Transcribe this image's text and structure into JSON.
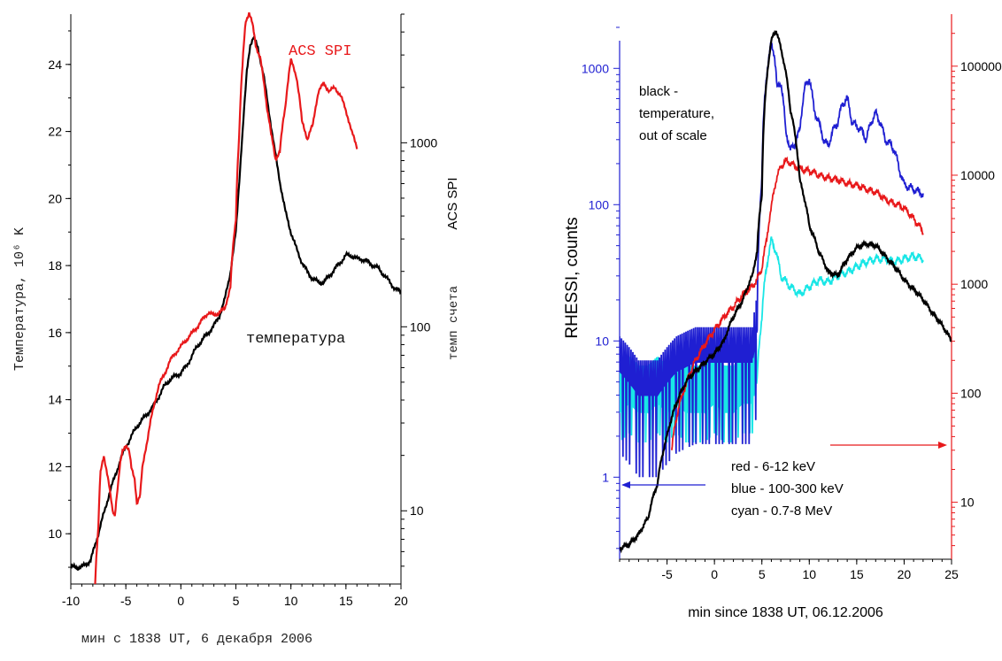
{
  "chart_data": [
    {
      "type": "line",
      "series_label": "ACS SPI",
      "curve_label": "температура",
      "ylabel": "Температура, 10⁶ K",
      "y2label_a": "темп счета",
      "y2label_b": "ACS SPI",
      "xlim": [
        -10,
        20
      ],
      "ylim": [
        8.5,
        25.5
      ],
      "y2lim_log": [
        4,
        5000
      ],
      "x_ticks": [
        -10,
        -5,
        0,
        5,
        10,
        15,
        20
      ],
      "x_tick_labels": [
        "-10",
        "-5",
        "0",
        "5",
        "10",
        "15",
        "20"
      ],
      "y_ticks": [
        10,
        12,
        14,
        16,
        18,
        20,
        22,
        24
      ],
      "y_tick_labels": [
        "10",
        "12",
        "14",
        "16",
        "18",
        "20",
        "22",
        "24"
      ],
      "y2_ticks": [
        10,
        100,
        1000
      ],
      "y2_tick_labels": [
        "10",
        "100",
        "1000"
      ],
      "colors": {
        "acs": "#e8191b",
        "temperature": "#000000"
      },
      "series": [
        {
          "name": "температура",
          "axis": "left",
          "x": [
            -10,
            -9,
            -8.2,
            -7.5,
            -7,
            -6.5,
            -6,
            -5.5,
            -5,
            -4.5,
            -4,
            -3.5,
            -3,
            -2.5,
            -2,
            -1.5,
            -1,
            -0.5,
            0,
            0.5,
            1,
            1.5,
            2,
            2.5,
            3,
            3.5,
            4,
            4.5,
            5,
            5.5,
            6,
            6.3,
            6.6,
            7,
            7.5,
            8,
            8.5,
            9,
            9.5,
            10,
            10.5,
            11,
            11.5,
            12,
            12.5,
            13,
            13.5,
            14,
            14.5,
            15,
            15.5,
            16,
            16.5,
            17,
            17.5,
            18,
            18.5,
            19,
            19.5,
            20
          ],
          "y": [
            9.0,
            9.0,
            9.2,
            10.0,
            10.6,
            11.2,
            11.7,
            12.2,
            12.6,
            12.9,
            13.2,
            13.4,
            13.6,
            13.8,
            14.1,
            14.4,
            14.6,
            14.7,
            14.8,
            15.0,
            15.3,
            15.6,
            15.8,
            16.0,
            16.2,
            16.5,
            17.0,
            17.8,
            19.0,
            21.5,
            23.8,
            24.6,
            24.8,
            24.5,
            23.7,
            22.6,
            21.5,
            20.5,
            19.6,
            19.0,
            18.5,
            18.1,
            17.8,
            17.6,
            17.5,
            17.5,
            17.7,
            17.9,
            18.1,
            18.3,
            18.3,
            18.2,
            18.2,
            18.1,
            18.0,
            17.9,
            17.7,
            17.5,
            17.3,
            17.2
          ]
        },
        {
          "name": "ACS SPI",
          "axis": "right_log",
          "x": [
            -7.8,
            -7.5,
            -7.3,
            -7.0,
            -6.7,
            -6.4,
            -6.2,
            -6.0,
            -5.7,
            -5.5,
            -5.3,
            -5.0,
            -4.7,
            -4.5,
            -4.2,
            -4.0,
            -3.7,
            -3.5,
            -3.0,
            -2.5,
            -2.0,
            -1.5,
            -1.0,
            -0.5,
            0,
            0.5,
            1.0,
            1.5,
            2.0,
            2.5,
            3.0,
            3.5,
            4.0,
            4.5,
            5.0,
            5.3,
            5.6,
            5.9,
            6.2,
            6.5,
            6.8,
            7.2,
            7.5,
            7.8,
            8.2,
            8.6,
            9.0,
            9.5,
            10.0,
            10.5,
            11.0,
            11.5,
            12.0,
            12.5,
            13.0,
            13.5,
            14.0,
            14.5,
            15.0,
            15.5,
            16.0
          ],
          "y": [
            4,
            8,
            16,
            20,
            16,
            12,
            10,
            9.5,
            14,
            18,
            21,
            23,
            21,
            17,
            15,
            11,
            12,
            17,
            25,
            36,
            48,
            55,
            65,
            72,
            78,
            85,
            92,
            100,
            110,
            120,
            115,
            120,
            125,
            165,
            380,
            1100,
            2600,
            4600,
            5100,
            4400,
            3400,
            2900,
            2200,
            1600,
            1100,
            820,
            890,
            1600,
            2800,
            2300,
            1300,
            1050,
            1250,
            1900,
            2100,
            1900,
            2000,
            1800,
            1500,
            1150,
            950
          ]
        }
      ]
    },
    {
      "type": "line",
      "title": "",
      "xlabel": "min since 1838 UT, 06.12.2006",
      "ylabel": "RHESSI, counts",
      "xlim": [
        -10,
        25
      ],
      "ylim_log": [
        0.25,
        2500
      ],
      "y2lim_log": [
        3,
        300000
      ],
      "x_ticks": [
        -5,
        0,
        5,
        10,
        15,
        20,
        25
      ],
      "x_tick_labels": [
        "-5",
        "0",
        "5",
        "10",
        "15",
        "20",
        "25"
      ],
      "y_ticks": [
        1,
        10,
        100,
        1000
      ],
      "y_tick_labels": [
        "1",
        "10",
        "100",
        "1000"
      ],
      "y2_ticks": [
        10,
        100,
        1000,
        10000,
        100000
      ],
      "y2_tick_labels": [
        "10",
        "100",
        "1000",
        "10000",
        "100000"
      ],
      "annotation_black": [
        "black -",
        "temperature,",
        "out of scale"
      ],
      "legend_lines": [
        "red - 6-12 keV",
        "blue - 100-300 keV",
        "cyan - 0.7-8 MeV"
      ],
      "colors": {
        "red": "#e8191b",
        "blue": "#1f1fd2",
        "cyan": "#19e6e6",
        "black": "#000000",
        "left_axis": "#1f1fd2",
        "right_axis": "#e8191b"
      },
      "series": [
        {
          "name": "red - 6-12 keV",
          "axis": "right_log",
          "x": [
            -4.5,
            -4,
            -3,
            -2,
            -1,
            0,
            1,
            2,
            3,
            4,
            4.5,
            5,
            5.5,
            6,
            6.5,
            7,
            7.5,
            8,
            8.5,
            9,
            10,
            11,
            12,
            13,
            14,
            15,
            16,
            17,
            18,
            19,
            20,
            21,
            22
          ],
          "y": [
            30,
            60,
            120,
            200,
            280,
            380,
            500,
            620,
            800,
            950,
            1100,
            1400,
            2500,
            5000,
            9000,
            12000,
            13500,
            13000,
            12000,
            11500,
            11000,
            10000,
            9500,
            9000,
            8500,
            8000,
            7500,
            7000,
            6000,
            5500,
            5000,
            4000,
            3000
          ]
        },
        {
          "name": "blue - 100-300 keV",
          "axis": "left_log",
          "x": [
            -10,
            -8,
            -6,
            -4,
            -2,
            0,
            2,
            4,
            4.5,
            5,
            5.5,
            6,
            6.3,
            6.6,
            7,
            7.5,
            8,
            8.5,
            9,
            9.5,
            10,
            10.5,
            11,
            11.5,
            12,
            12.5,
            13,
            13.5,
            14,
            14.5,
            15,
            15.5,
            16,
            16.5,
            17,
            17.5,
            18,
            18.5,
            19,
            19.5,
            20,
            21,
            22
          ],
          "y": [
            6,
            4,
            4,
            6,
            7,
            7,
            7,
            7,
            12,
            150,
            900,
            1500,
            1300,
            700,
            800,
            350,
            250,
            280,
            350,
            700,
            850,
            500,
            400,
            300,
            270,
            350,
            400,
            550,
            600,
            400,
            380,
            350,
            300,
            400,
            470,
            400,
            300,
            280,
            250,
            180,
            140,
            130,
            120
          ]
        },
        {
          "name": "cyan - 0.7-8 MeV",
          "axis": "left_log",
          "x": [
            -10,
            -9,
            -8,
            -7,
            -6,
            -5,
            -4,
            -3,
            -2,
            -1,
            0,
            1,
            2,
            3,
            4,
            4.5,
            5,
            5.5,
            6,
            6.5,
            7,
            8,
            9,
            10,
            11,
            12,
            13,
            14,
            15,
            16,
            17,
            18,
            19,
            20,
            21,
            22
          ],
          "y": [
            3,
            3.5,
            3,
            3,
            3.5,
            3,
            3.5,
            3,
            3,
            3,
            3.5,
            3,
            3,
            3.5,
            3.5,
            5,
            15,
            35,
            55,
            45,
            30,
            25,
            22,
            25,
            28,
            27,
            30,
            32,
            35,
            38,
            40,
            40,
            38,
            40,
            42,
            40
          ]
        },
        {
          "name": "black - temperature",
          "axis": "left_log",
          "x": [
            -10,
            -9,
            -8,
            -7,
            -6,
            -5,
            -4,
            -3,
            -2,
            -1,
            0,
            1,
            2,
            3,
            4,
            4.5,
            5,
            5.5,
            6,
            6.5,
            7,
            8,
            9,
            10,
            11,
            12,
            13,
            14,
            15,
            16,
            17,
            18,
            19,
            20,
            21,
            22,
            23,
            24,
            25
          ],
          "y": [
            0.3,
            0.32,
            0.38,
            0.5,
            0.9,
            2,
            3.5,
            5,
            6,
            7,
            8,
            10,
            15,
            20,
            30,
            45,
            120,
            800,
            1600,
            1900,
            1400,
            500,
            150,
            70,
            45,
            32,
            30,
            40,
            48,
            52,
            50,
            42,
            35,
            28,
            24,
            20,
            16,
            13,
            10
          ]
        }
      ]
    }
  ]
}
